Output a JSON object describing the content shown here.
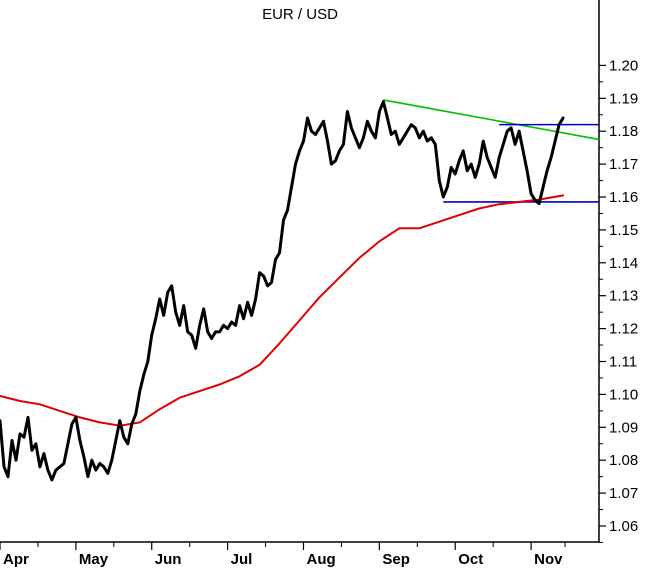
{
  "chart_data": {
    "type": "line",
    "title": "EUR / USD",
    "xlabel": "",
    "ylabel": "",
    "ylim": [
      1.055,
      1.21
    ],
    "y_ticks": [
      1.06,
      1.07,
      1.08,
      1.09,
      1.1,
      1.11,
      1.12,
      1.13,
      1.14,
      1.15,
      1.16,
      1.17,
      1.18,
      1.19,
      1.2
    ],
    "y_axis_side": "right",
    "x_range": [
      0,
      150
    ],
    "x_ticks": [
      {
        "label": "Apr",
        "x": 0
      },
      {
        "label": "May",
        "x": 19
      },
      {
        "label": "Jun",
        "x": 38
      },
      {
        "label": "Jul",
        "x": 57
      },
      {
        "label": "Aug",
        "x": 76
      },
      {
        "label": "Sep",
        "x": 95
      },
      {
        "label": "Oct",
        "x": 114
      },
      {
        "label": "Nov",
        "x": 133
      }
    ],
    "grid": false,
    "series": [
      {
        "color": "#000000",
        "points": [
          [
            0,
            1.092
          ],
          [
            1,
            1.078
          ],
          [
            2,
            1.075
          ],
          [
            3,
            1.086
          ],
          [
            4,
            1.08
          ],
          [
            5,
            1.088
          ],
          [
            6,
            1.087
          ],
          [
            7,
            1.093
          ],
          [
            8,
            1.083
          ],
          [
            9,
            1.085
          ],
          [
            10,
            1.078
          ],
          [
            11,
            1.082
          ],
          [
            12,
            1.077
          ],
          [
            13,
            1.074
          ],
          [
            14,
            1.077
          ],
          [
            15,
            1.078
          ],
          [
            16,
            1.079
          ],
          [
            17,
            1.085
          ],
          [
            18,
            1.091
          ],
          [
            19,
            1.093
          ],
          [
            20,
            1.086
          ],
          [
            21,
            1.081
          ],
          [
            22,
            1.075
          ],
          [
            23,
            1.08
          ],
          [
            24,
            1.077
          ],
          [
            25,
            1.079
          ],
          [
            26,
            1.078
          ],
          [
            27,
            1.076
          ],
          [
            28,
            1.08
          ],
          [
            29,
            1.086
          ],
          [
            30,
            1.092
          ],
          [
            31,
            1.087
          ],
          [
            32,
            1.085
          ],
          [
            33,
            1.091
          ],
          [
            34,
            1.094
          ],
          [
            35,
            1.101
          ],
          [
            36,
            1.106
          ],
          [
            37,
            1.11
          ],
          [
            38,
            1.118
          ],
          [
            39,
            1.123
          ],
          [
            40,
            1.129
          ],
          [
            41,
            1.124
          ],
          [
            42,
            1.131
          ],
          [
            43,
            1.133
          ],
          [
            44,
            1.125
          ],
          [
            45,
            1.121
          ],
          [
            46,
            1.127
          ],
          [
            47,
            1.119
          ],
          [
            48,
            1.118
          ],
          [
            49,
            1.114
          ],
          [
            50,
            1.121
          ],
          [
            51,
            1.126
          ],
          [
            52,
            1.119
          ],
          [
            53,
            1.117
          ],
          [
            54,
            1.119
          ],
          [
            55,
            1.119
          ],
          [
            56,
            1.121
          ],
          [
            57,
            1.12
          ],
          [
            58,
            1.122
          ],
          [
            59,
            1.121
          ],
          [
            60,
            1.127
          ],
          [
            61,
            1.123
          ],
          [
            62,
            1.128
          ],
          [
            63,
            1.124
          ],
          [
            64,
            1.129
          ],
          [
            65,
            1.137
          ],
          [
            66,
            1.136
          ],
          [
            67,
            1.133
          ],
          [
            68,
            1.134
          ],
          [
            69,
            1.141
          ],
          [
            70,
            1.143
          ],
          [
            71,
            1.153
          ],
          [
            72,
            1.156
          ],
          [
            73,
            1.163
          ],
          [
            74,
            1.17
          ],
          [
            75,
            1.174
          ],
          [
            76,
            1.177
          ],
          [
            77,
            1.184
          ],
          [
            78,
            1.18
          ],
          [
            79,
            1.179
          ],
          [
            80,
            1.181
          ],
          [
            81,
            1.183
          ],
          [
            82,
            1.177
          ],
          [
            83,
            1.17
          ],
          [
            84,
            1.171
          ],
          [
            85,
            1.174
          ],
          [
            86,
            1.176
          ],
          [
            87,
            1.186
          ],
          [
            88,
            1.181
          ],
          [
            89,
            1.178
          ],
          [
            90,
            1.175
          ],
          [
            91,
            1.178
          ],
          [
            92,
            1.183
          ],
          [
            93,
            1.18
          ],
          [
            94,
            1.178
          ],
          [
            95,
            1.186
          ],
          [
            96,
            1.189
          ],
          [
            97,
            1.184
          ],
          [
            98,
            1.179
          ],
          [
            99,
            1.18
          ],
          [
            100,
            1.176
          ],
          [
            101,
            1.178
          ],
          [
            102,
            1.18
          ],
          [
            103,
            1.182
          ],
          [
            104,
            1.181
          ],
          [
            105,
            1.178
          ],
          [
            106,
            1.18
          ],
          [
            107,
            1.177
          ],
          [
            108,
            1.178
          ],
          [
            109,
            1.176
          ],
          [
            110,
            1.165
          ],
          [
            111,
            1.16
          ],
          [
            112,
            1.163
          ],
          [
            113,
            1.169
          ],
          [
            114,
            1.167
          ],
          [
            115,
            1.171
          ],
          [
            116,
            1.174
          ],
          [
            117,
            1.168
          ],
          [
            118,
            1.17
          ],
          [
            119,
            1.166
          ],
          [
            120,
            1.17
          ],
          [
            121,
            1.177
          ],
          [
            122,
            1.172
          ],
          [
            123,
            1.169
          ],
          [
            124,
            1.166
          ],
          [
            125,
            1.172
          ],
          [
            126,
            1.176
          ],
          [
            127,
            1.18
          ],
          [
            128,
            1.181
          ],
          [
            129,
            1.176
          ],
          [
            130,
            1.18
          ],
          [
            131,
            1.174
          ],
          [
            132,
            1.168
          ],
          [
            133,
            1.161
          ],
          [
            134,
            1.159
          ],
          [
            135,
            1.158
          ],
          [
            136,
            1.163
          ],
          [
            137,
            1.168
          ],
          [
            138,
            1.172
          ],
          [
            139,
            1.177
          ],
          [
            140,
            1.182
          ],
          [
            141,
            1.184
          ]
        ]
      },
      {
        "color": "#e00000",
        "points": [
          [
            0,
            1.0995
          ],
          [
            5,
            1.098
          ],
          [
            10,
            1.097
          ],
          [
            15,
            1.095
          ],
          [
            20,
            1.093
          ],
          [
            25,
            1.0915
          ],
          [
            30,
            1.0905
          ],
          [
            35,
            1.0915
          ],
          [
            40,
            1.0955
          ],
          [
            45,
            1.099
          ],
          [
            50,
            1.101
          ],
          [
            55,
            1.103
          ],
          [
            60,
            1.1055
          ],
          [
            65,
            1.109
          ],
          [
            70,
            1.1155
          ],
          [
            75,
            1.1225
          ],
          [
            80,
            1.1295
          ],
          [
            85,
            1.1355
          ],
          [
            90,
            1.1415
          ],
          [
            95,
            1.1465
          ],
          [
            100,
            1.1505
          ],
          [
            105,
            1.1505
          ],
          [
            110,
            1.1525
          ],
          [
            115,
            1.1545
          ],
          [
            120,
            1.1565
          ],
          [
            125,
            1.1578
          ],
          [
            130,
            1.1585
          ],
          [
            135,
            1.1592
          ],
          [
            141,
            1.1605
          ]
        ]
      }
    ],
    "trendlines": [
      {
        "color": "#00c000",
        "from": [
          96,
          1.1895
        ],
        "to": [
          150,
          1.1775
        ]
      },
      {
        "color": "#0000cc",
        "from": [
          125,
          1.182
        ],
        "to": [
          150,
          1.182
        ]
      },
      {
        "color": "#0000cc",
        "from": [
          111,
          1.1585
        ],
        "to": [
          150,
          1.1585
        ]
      }
    ]
  }
}
